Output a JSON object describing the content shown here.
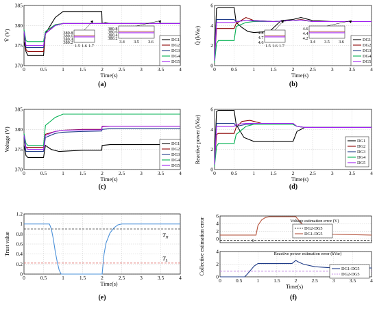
{
  "chart_data": [
    {
      "id": "a",
      "caption": "(a)",
      "type": "line",
      "xlabel": "Time(s)",
      "ylabel": "V̄ (V)",
      "xlim": [
        0,
        4
      ],
      "ylim": [
        370,
        385
      ],
      "xticks": [
        "0",
        "0.5",
        "1",
        "1.5",
        "2",
        "2.5",
        "3",
        "3.5",
        "4"
      ],
      "yticks": [
        "370",
        "375",
        "380",
        "385"
      ],
      "legend": "right",
      "series": [
        {
          "name": "DG1",
          "color": "#000000",
          "x": [
            0,
            0.05,
            0.1,
            0.5,
            0.55,
            0.8,
            1.0,
            1.99,
            2.0,
            2.08,
            2.2,
            3.0,
            4.0
          ],
          "y": [
            376,
            373.5,
            372.5,
            372.5,
            378,
            382,
            383.5,
            383.5,
            380.5,
            380.7,
            380.5,
            380.5,
            380.5
          ]
        },
        {
          "name": "DG2",
          "color": "#8b0000",
          "x": [
            0,
            0.05,
            0.1,
            0.5,
            0.55,
            0.8,
            1.0,
            1.5,
            2.0,
            2.2,
            4.0
          ],
          "y": [
            378,
            374,
            373.5,
            373.5,
            378,
            380.2,
            380.5,
            380.5,
            380.5,
            380.5,
            380.5
          ]
        },
        {
          "name": "DG3",
          "color": "#1f3c88",
          "x": [
            0,
            0.05,
            0.1,
            0.5,
            0.55,
            0.8,
            1.0,
            1.5,
            2.0,
            2.2,
            4.0
          ],
          "y": [
            378,
            374.5,
            374.5,
            374.5,
            378,
            380,
            380.5,
            380.5,
            380.5,
            380.5,
            380.5
          ]
        },
        {
          "name": "DG4",
          "color": "#00b050",
          "x": [
            0,
            0.05,
            0.1,
            0.5,
            0.55,
            0.8,
            1.0,
            1.5,
            2.0,
            2.2,
            4.0
          ],
          "y": [
            379,
            376.2,
            376,
            376,
            378.5,
            380.2,
            380.5,
            380.5,
            380.5,
            380.5,
            380.5
          ]
        },
        {
          "name": "DG5",
          "color": "#a020f0",
          "x": [
            0,
            0.05,
            0.1,
            0.5,
            0.55,
            0.8,
            1.0,
            1.5,
            2.0,
            2.2,
            4.0
          ],
          "y": [
            378.5,
            375,
            375,
            375,
            378,
            380,
            380.5,
            380.5,
            380.5,
            380.5,
            380.5
          ]
        }
      ],
      "insets": [
        {
          "xticks": [
            "1.5",
            "1.6",
            "1.7"
          ],
          "yticks": [
            "380.8",
            "380.6",
            "380.4",
            "380.2"
          ]
        },
        {
          "xticks": [
            "3.4",
            "3.5",
            "3.6"
          ],
          "yticks": [
            "380.8",
            "380.6",
            "380.4",
            "380.2"
          ]
        }
      ]
    },
    {
      "id": "b",
      "caption": "(b)",
      "type": "line",
      "xlabel": "Time(s)",
      "ylabel": "Q̄ (kVar)",
      "xlim": [
        0,
        4
      ],
      "ylim": [
        0,
        6
      ],
      "xticks": [
        "0",
        "0.5",
        "1",
        "1.5",
        "2",
        "2.5",
        "3",
        "3.5",
        "4"
      ],
      "yticks": [
        "0",
        "2",
        "4",
        "6"
      ],
      "legend": "right",
      "series": [
        {
          "name": "DG1",
          "color": "#000000",
          "x": [
            0,
            0.05,
            0.1,
            0.5,
            0.55,
            0.7,
            0.85,
            1.0,
            1.4,
            1.7,
            2.0,
            2.2,
            2.5,
            3.0,
            4.0
          ],
          "y": [
            1,
            5.7,
            5.8,
            5.8,
            4.3,
            3.8,
            3.4,
            3.3,
            3.4,
            4.5,
            4.6,
            4.8,
            4.5,
            4.4,
            4.4
          ]
        },
        {
          "name": "DG2",
          "color": "#8b0000",
          "x": [
            0,
            0.05,
            0.1,
            0.5,
            0.55,
            0.8,
            1.0,
            1.5,
            2.0,
            2.2,
            2.5,
            4.0
          ],
          "y": [
            0.6,
            3.7,
            3.7,
            3.7,
            4.2,
            4.8,
            4.5,
            4.4,
            4.5,
            4.6,
            4.4,
            4.4
          ]
        },
        {
          "name": "DG3",
          "color": "#1f3c88",
          "x": [
            0,
            0.05,
            0.1,
            0.5,
            0.55,
            0.8,
            1.0,
            1.5,
            2.0,
            2.2,
            2.5,
            4.0
          ],
          "y": [
            0.8,
            4.6,
            4.6,
            4.6,
            4.4,
            4.5,
            4.5,
            4.4,
            4.5,
            4.55,
            4.4,
            4.4
          ]
        },
        {
          "name": "DG4",
          "color": "#00b050",
          "x": [
            0,
            0.05,
            0.1,
            0.5,
            0.55,
            0.8,
            1.0,
            1.5,
            2.0,
            2.2,
            2.5,
            4.0
          ],
          "y": [
            0.3,
            2.2,
            2.5,
            2.5,
            3.9,
            4.3,
            4.4,
            4.4,
            4.5,
            4.55,
            4.4,
            4.4
          ]
        },
        {
          "name": "DG5",
          "color": "#a020f0",
          "x": [
            0,
            0.05,
            0.1,
            0.5,
            0.55,
            0.8,
            1.0,
            1.5,
            2.0,
            2.2,
            2.5,
            4.0
          ],
          "y": [
            0.5,
            4.3,
            4.3,
            4.3,
            4.4,
            4.5,
            4.45,
            4.4,
            4.5,
            4.55,
            4.4,
            4.4
          ]
        }
      ],
      "insets": [
        {
          "xticks": [
            "1.5",
            "1.6",
            "1.7"
          ],
          "yticks": [
            "4.8",
            "4.7",
            "4.6"
          ]
        },
        {
          "xticks": [
            "3.4",
            "3.5",
            "3.6"
          ],
          "yticks": [
            "4.6",
            "4.4",
            "4.2"
          ]
        }
      ]
    },
    {
      "id": "c",
      "caption": "(c)",
      "type": "line",
      "xlabel": "Time(s)",
      "ylabel": "Voltage (V)",
      "xlim": [
        0,
        4
      ],
      "ylim": [
        370,
        385
      ],
      "xticks": [
        "0",
        "0.5",
        "1",
        "1.5",
        "2",
        "2.5",
        "3",
        "3.5",
        "4"
      ],
      "yticks": [
        "370",
        "375",
        "380",
        "385"
      ],
      "legend": "right",
      "series": [
        {
          "name": "DG1",
          "color": "#000000",
          "x": [
            0,
            0.05,
            0.1,
            0.5,
            0.55,
            0.7,
            0.9,
            1.5,
            1.99,
            2.0,
            2.2,
            3.0,
            4.0
          ],
          "y": [
            376,
            373.5,
            373,
            373,
            376,
            375,
            374.5,
            374.8,
            374.8,
            376,
            376.2,
            376.2,
            376.2
          ]
        },
        {
          "name": "DG2",
          "color": "#8b0000",
          "x": [
            0,
            0.05,
            0.1,
            0.5,
            0.55,
            0.8,
            1.0,
            1.5,
            1.99,
            2.0,
            2.2,
            4.0
          ],
          "y": [
            378,
            375.5,
            375.5,
            375.5,
            378.8,
            379.5,
            379.8,
            380,
            380,
            380.8,
            380.8,
            380.8
          ]
        },
        {
          "name": "DG3",
          "color": "#1f3c88",
          "x": [
            0,
            0.05,
            0.1,
            0.5,
            0.55,
            0.8,
            1.0,
            1.5,
            1.99,
            2.0,
            2.2,
            4.0
          ],
          "y": [
            378,
            374.5,
            374.5,
            374.5,
            378,
            379,
            379.3,
            379.5,
            379.6,
            380,
            380.2,
            380.2
          ]
        },
        {
          "name": "DG4",
          "color": "#00b050",
          "x": [
            0,
            0.05,
            0.1,
            0.5,
            0.55,
            0.8,
            1.0,
            1.5,
            2.0,
            2.2,
            4.0
          ],
          "y": [
            379,
            376.5,
            376,
            376,
            381,
            383,
            383.8,
            383.8,
            383.8,
            383.8,
            383.8
          ]
        },
        {
          "name": "DG5",
          "color": "#a020f0",
          "x": [
            0,
            0.05,
            0.1,
            0.5,
            0.55,
            0.8,
            1.0,
            1.5,
            1.99,
            2.0,
            2.2,
            4.0
          ],
          "y": [
            378.5,
            375.5,
            375,
            375,
            378.5,
            379.5,
            379.8,
            379.9,
            379.9,
            380.7,
            380.8,
            380.8
          ]
        }
      ]
    },
    {
      "id": "d",
      "caption": "(d)",
      "type": "line",
      "xlabel": "Time(s)",
      "ylabel": "Reactive power (kVar)",
      "xlim": [
        0,
        4
      ],
      "ylim": [
        0,
        6
      ],
      "xticks": [
        "0",
        "0.5",
        "1",
        "1.5",
        "2",
        "2.5",
        "3",
        "3.5",
        "4"
      ],
      "yticks": [
        "0",
        "2",
        "4",
        "6"
      ],
      "legend": "lower right",
      "series": [
        {
          "name": "DG1",
          "color": "#000000",
          "x": [
            0,
            0.05,
            0.1,
            0.5,
            0.55,
            0.75,
            1.0,
            1.5,
            2.0,
            2.1,
            2.3,
            3.0,
            4.0
          ],
          "y": [
            1,
            5.8,
            5.9,
            5.9,
            4.5,
            3.2,
            2.8,
            2.8,
            2.8,
            3.8,
            4.2,
            4.2,
            4.2
          ]
        },
        {
          "name": "DG2",
          "color": "#8b0000",
          "x": [
            0,
            0.05,
            0.1,
            0.5,
            0.55,
            0.7,
            0.9,
            1.2,
            2.0,
            2.1,
            2.3,
            4.0
          ],
          "y": [
            0.6,
            3.5,
            3.6,
            3.6,
            4.2,
            4.8,
            4.9,
            4.6,
            4.6,
            4.3,
            4.2,
            4.2
          ]
        },
        {
          "name": "DG3",
          "color": "#1f3c88",
          "x": [
            0,
            0.05,
            0.1,
            0.5,
            0.55,
            0.8,
            1.0,
            2.0,
            2.1,
            2.3,
            4.0
          ],
          "y": [
            0.8,
            4.6,
            4.6,
            4.6,
            4.3,
            4.5,
            4.5,
            4.5,
            4.3,
            4.2,
            4.2
          ]
        },
        {
          "name": "DG4",
          "color": "#00b050",
          "x": [
            0,
            0.05,
            0.1,
            0.5,
            0.55,
            0.8,
            1.0,
            2.0,
            2.1,
            2.3,
            4.0
          ],
          "y": [
            0.3,
            2.3,
            2.6,
            2.6,
            3.5,
            4.3,
            4.5,
            4.5,
            4.3,
            4.2,
            4.2
          ]
        },
        {
          "name": "DG5",
          "color": "#a020f0",
          "x": [
            0,
            0.05,
            0.1,
            0.5,
            0.55,
            0.8,
            1.0,
            2.0,
            2.1,
            2.3,
            4.0
          ],
          "y": [
            0.5,
            4.3,
            4.3,
            4.3,
            4.5,
            4.6,
            4.6,
            4.6,
            4.3,
            4.2,
            4.2
          ]
        }
      ]
    },
    {
      "id": "e",
      "caption": "(e)",
      "type": "line",
      "xlabel": "Time(s)",
      "ylabel": "Trust value",
      "xlim": [
        0,
        4
      ],
      "ylim": [
        0,
        1.2
      ],
      "xticks": [
        "0",
        "0.5",
        "1",
        "1.5",
        "2",
        "2.5",
        "3",
        "3.5",
        "4"
      ],
      "yticks": [
        "0",
        "0.2",
        "0.4",
        "0.6",
        "0.8",
        "1",
        "1.2"
      ],
      "series": [
        {
          "name": "",
          "color": "#4a90d9",
          "x": [
            0,
            0.6,
            0.65,
            0.7,
            0.75,
            0.8,
            0.85,
            0.9,
            0.95,
            0.95,
            2.0,
            2.0,
            2.05,
            2.1,
            2.2,
            2.3,
            2.4,
            2.5,
            4.0
          ],
          "y": [
            1,
            1,
            1,
            0.9,
            0.7,
            0.45,
            0.25,
            0.08,
            0,
            0,
            0,
            0,
            0.4,
            0.62,
            0.82,
            0.92,
            0.98,
            1,
            1
          ]
        }
      ],
      "thresholds": [
        {
          "label": "TH",
          "value": 0.9,
          "color": "#333333"
        },
        {
          "label": "TL",
          "value": 0.22,
          "color": "#d9534f"
        }
      ]
    },
    {
      "id": "f",
      "caption": "(f)",
      "type": "line",
      "ylabel": "Collective estimation error",
      "xlabel": "Time(s)",
      "subplots": [
        {
          "title": "Voltage estimation error (V)",
          "xlim": [
            0,
            4
          ],
          "ylim": [
            -1,
            6
          ],
          "yticks": [
            "0",
            "2",
            "4",
            "6"
          ],
          "series": [
            {
              "name": "DG2-DG5",
              "color": "#333333",
              "style": "dashed",
              "x": [
                0,
                4
              ],
              "y": [
                -0.4,
                -0.4
              ]
            },
            {
              "name": "DG1-DG5",
              "color": "#b5533c",
              "style": "solid",
              "x": [
                0,
                0.95,
                1.0,
                1.1,
                1.2,
                1.3,
                2.0,
                2.05,
                2.2,
                2.4,
                2.7,
                3.0,
                4.0
              ],
              "y": [
                1,
                1,
                3.5,
                5,
                5.6,
                5.8,
                5.8,
                5.2,
                3.5,
                2.5,
                1.6,
                1.2,
                1
              ]
            }
          ]
        },
        {
          "title": "Reactive power estimation error (kVar)",
          "xlim": [
            0,
            4
          ],
          "ylim": [
            0,
            4
          ],
          "yticks": [
            "0",
            "2",
            "4"
          ],
          "xticks": [
            "0",
            "0.5",
            "1",
            "1.5",
            "2",
            "2.5",
            "3",
            "3.5",
            "4"
          ],
          "series": [
            {
              "name": "DG2-DG5",
              "color": "#c58be6",
              "style": "dashed",
              "x": [
                0,
                4
              ],
              "y": [
                0.9,
                0.9
              ]
            },
            {
              "name": "DG1-DG5",
              "color": "#1f3c88",
              "style": "solid",
              "x": [
                0,
                0.65,
                0.7,
                0.8,
                0.9,
                1.0,
                1.9,
                2.0,
                2.05,
                2.2,
                2.5,
                3.0,
                4.0
              ],
              "y": [
                0,
                0,
                0.3,
                1,
                1.7,
                2.1,
                2.1,
                2.6,
                2.4,
                2.0,
                1.6,
                1.4,
                1.4
              ]
            }
          ]
        }
      ]
    }
  ]
}
